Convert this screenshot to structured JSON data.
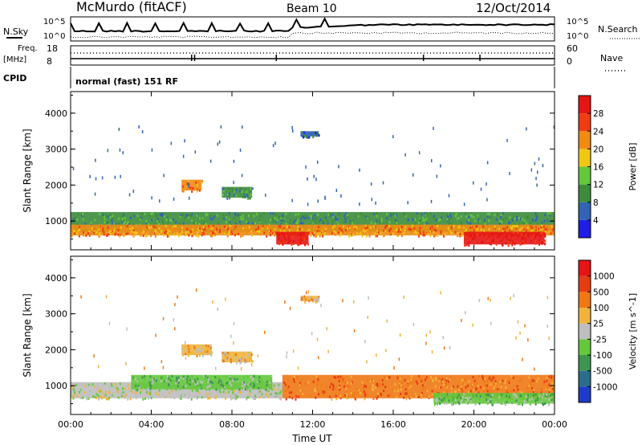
{
  "header": {
    "station": "McMurdo (fitACF)",
    "beam": "Beam 10",
    "date": "12/Oct/2014"
  },
  "top_panels": {
    "nsky_label": "N.Sky",
    "nsearch_label": "N.Search",
    "power_scale_hi": "10^5",
    "power_scale_lo": "10^0",
    "freq_label_1": "Freq.",
    "freq_label_2": "[MHz]",
    "freq_hi": "18",
    "freq_lo": "8",
    "nave_label": "Nave",
    "nave_hi": "60",
    "nave_lo": "0",
    "cpid_label": "CPID",
    "cpid_text": "normal (fast) 151 RF"
  },
  "chart_data": [
    {
      "type": "heatmap",
      "title": "",
      "xlabel": "Time UT",
      "ylabel": "Slant Range [km]",
      "x_ticks": [
        "00:00",
        "04:00",
        "08:00",
        "12:00",
        "16:00",
        "20:00",
        "00:00"
      ],
      "y_ticks": [
        1000,
        2000,
        3000,
        4000
      ],
      "ylim": [
        200,
        4600
      ],
      "xlim_hours": [
        0,
        24
      ],
      "colorbar": {
        "label": "Power [dB]",
        "ticks": [
          "4",
          "8",
          "12",
          "16",
          "20",
          "24",
          "28"
        ],
        "colors": [
          "#1e1ee6",
          "#3264b4",
          "#3c8c3c",
          "#64c83c",
          "#f0c814",
          "#f08c14",
          "#f03c14",
          "#e61414"
        ]
      },
      "bands": [
        {
          "x0": 0.0,
          "x1": 24.0,
          "y0": 700,
          "y1": 1250,
          "level": 2
        },
        {
          "x0": 0.0,
          "x1": 24.0,
          "y0": 600,
          "y1": 900,
          "level": 5
        },
        {
          "x0": 10.2,
          "x1": 11.8,
          "y0": 350,
          "y1": 700,
          "level": 7
        },
        {
          "x0": 19.5,
          "x1": 23.5,
          "y0": 350,
          "y1": 700,
          "level": 7
        },
        {
          "x0": 5.5,
          "x1": 6.5,
          "y0": 1850,
          "y1": 2150,
          "level": 5
        },
        {
          "x0": 7.5,
          "x1": 9.0,
          "y0": 1650,
          "y1": 1950,
          "level": 2
        },
        {
          "x0": 11.4,
          "x1": 12.3,
          "y0": 3350,
          "y1": 3500,
          "level": 1
        }
      ]
    },
    {
      "type": "heatmap",
      "title": "",
      "xlabel": "Time UT",
      "ylabel": "Slant Range [km]",
      "x_ticks": [
        "00:00",
        "04:00",
        "08:00",
        "12:00",
        "16:00",
        "20:00",
        "00:00"
      ],
      "y_ticks": [
        1000,
        2000,
        3000,
        4000
      ],
      "ylim": [
        200,
        4600
      ],
      "xlim_hours": [
        0,
        24
      ],
      "colorbar": {
        "label": "Velocity [m s^-1]",
        "ticks": [
          "1000",
          "500",
          "100",
          "25",
          "-25",
          "-100",
          "-500",
          "-1000"
        ],
        "colors": [
          "#1e3cc8",
          "#2a6e8c",
          "#3c9650",
          "#64c83c",
          "#bebebe",
          "#f0b43c",
          "#f07814",
          "#e63c14",
          "#e61414"
        ]
      },
      "bands": [
        {
          "x0": 0.0,
          "x1": 10.5,
          "y0": 650,
          "y1": 1100,
          "level": 4
        },
        {
          "x0": 3.0,
          "x1": 10.0,
          "y0": 900,
          "y1": 1300,
          "level": 3
        },
        {
          "x0": 10.5,
          "x1": 24.0,
          "y0": 650,
          "y1": 1300,
          "level": 6
        },
        {
          "x0": 18.0,
          "x1": 24.0,
          "y0": 500,
          "y1": 800,
          "level": 3
        },
        {
          "x0": 5.5,
          "x1": 7.0,
          "y0": 1850,
          "y1": 2150,
          "level": 5
        },
        {
          "x0": 7.5,
          "x1": 9.0,
          "y0": 1650,
          "y1": 1950,
          "level": 5
        },
        {
          "x0": 11.4,
          "x1": 12.3,
          "y0": 3350,
          "y1": 3500,
          "level": 5
        }
      ]
    }
  ]
}
